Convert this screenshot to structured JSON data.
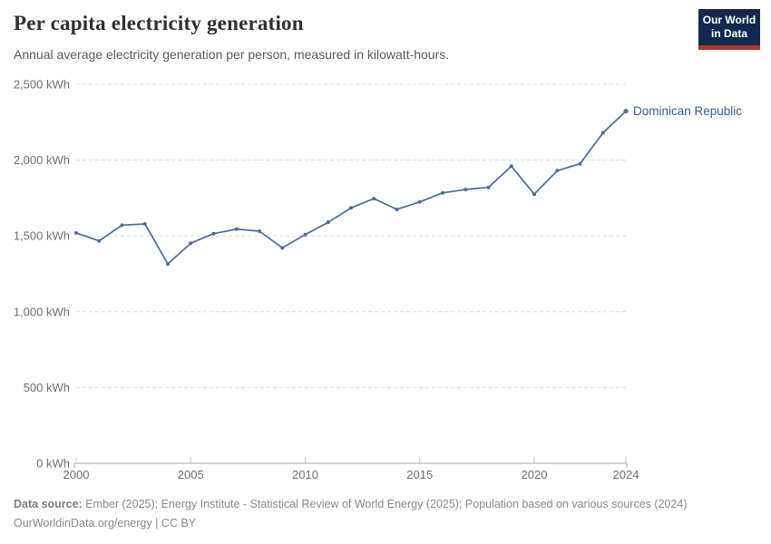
{
  "header": {
    "title": "Per capita electricity generation",
    "subtitle": "Annual average electricity generation per person, measured in kilowatt-hours.",
    "logo": {
      "line1": "Our World",
      "line2": "in Data",
      "bg_color": "#12294d",
      "accent_color": "#b0342c"
    }
  },
  "chart_data": {
    "type": "line",
    "title": "Per capita electricity generation",
    "subtitle": "Annual average electricity generation per person, measured in kilowatt-hours.",
    "xlabel": "",
    "ylabel": "kWh",
    "xlim": [
      2000,
      2024
    ],
    "ylim": [
      0,
      2500
    ],
    "grid": "horizontal-dashed",
    "legend_position": "line-end-label",
    "xticks": [
      2000,
      2005,
      2010,
      2015,
      2020,
      2024
    ],
    "yticks": [
      {
        "value": 0,
        "label": "0 kWh"
      },
      {
        "value": 500,
        "label": "500 kWh"
      },
      {
        "value": 1000,
        "label": "1,000 kWh"
      },
      {
        "value": 1500,
        "label": "1,500 kWh"
      },
      {
        "value": 2000,
        "label": "2,000 kWh"
      },
      {
        "value": 2500,
        "label": "2,500 kWh"
      }
    ],
    "series": [
      {
        "name": "Dominican Republic",
        "color": "#4c6a9c",
        "label_color": "#3d5a90",
        "x": [
          2000,
          2001,
          2002,
          2003,
          2004,
          2005,
          2006,
          2007,
          2008,
          2009,
          2010,
          2011,
          2012,
          2013,
          2014,
          2015,
          2016,
          2017,
          2018,
          2019,
          2020,
          2021,
          2022,
          2023,
          2024
        ],
        "values": [
          1520,
          1467,
          1571,
          1579,
          1315,
          1452,
          1515,
          1545,
          1531,
          1421,
          1509,
          1590,
          1685,
          1746,
          1675,
          1724,
          1784,
          1806,
          1820,
          1960,
          1775,
          1930,
          1976,
          2180,
          2323
        ]
      }
    ],
    "axis_colors": {
      "grid": "#dcdcdc",
      "axis_line": "#a8a8a8",
      "tick_label": "#6e6e6e"
    }
  },
  "footer": {
    "source_label": "Data source:",
    "source_text": " Ember (2025); Energy Institute - Statistical Review of World Energy (2025); Population based on various sources (2024)",
    "link_line": "OurWorldinData.org/energy | CC BY"
  }
}
